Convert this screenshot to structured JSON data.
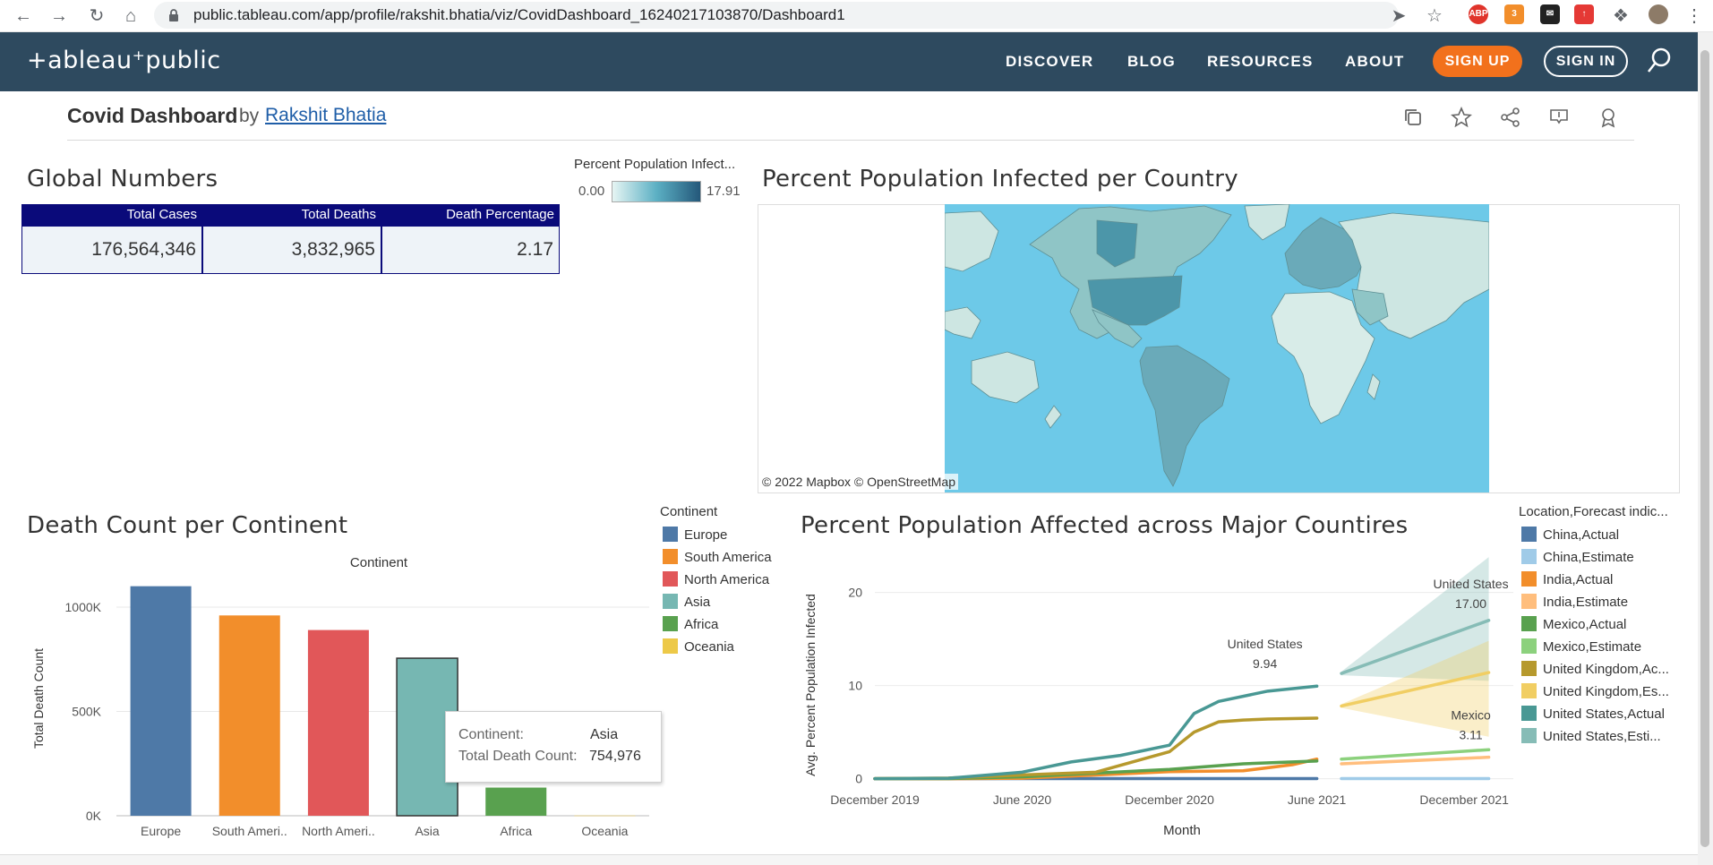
{
  "browser": {
    "url": "public.tableau.com/app/profile/rakshit.bhatia/viz/CovidDashboard_16240217103870/Dashboard1",
    "ext_abp": "ABP",
    "ext_badge": "3"
  },
  "site": {
    "logo": "+ableau⁺public",
    "nav": [
      "DISCOVER",
      "BLOG",
      "RESOURCES",
      "ABOUT"
    ],
    "signup": "SIGN UP",
    "signin": "SIGN IN"
  },
  "viz": {
    "title": "Covid Dashboard",
    "by": "by",
    "author": "Rakshit Bhatia"
  },
  "global": {
    "title": "Global Numbers",
    "headers": [
      "Total Cases",
      "Total Deaths",
      "Death Percentage"
    ],
    "values": [
      "176,564,346",
      "3,832,965",
      "2.17"
    ]
  },
  "map": {
    "title": "Percent Population Infected per Country",
    "legend_title": "Percent Population Infect...",
    "legend_min": "0.00",
    "legend_max": "17.91",
    "attribution": "© 2022 Mapbox  © OpenStreetMap",
    "colors": {
      "ocean": "#6dc9e8",
      "low": "#cde6e2",
      "mid": "#8fc5c6",
      "high": "#4c96a9"
    }
  },
  "continent": {
    "title": "Death Count per Continent",
    "legend_title": "Continent",
    "legend": [
      {
        "name": "Europe",
        "color": "#4e79a7"
      },
      {
        "name": "South America",
        "color": "#f28e2b"
      },
      {
        "name": "North America",
        "color": "#e15759"
      },
      {
        "name": "Asia",
        "color": "#76b7b2"
      },
      {
        "name": "Africa",
        "color": "#59a14f"
      },
      {
        "name": "Oceania",
        "color": "#edc948"
      }
    ],
    "tooltip": {
      "k1": "Continent:",
      "v1": "Asia",
      "k2": "Total Death Count:",
      "v2": "754,976"
    }
  },
  "trend": {
    "title": "Percent Population Affected across Major Countires",
    "legend_title": "Location,Forecast indic...",
    "legend": [
      {
        "name": "China,Actual",
        "color": "#4e79a7"
      },
      {
        "name": "China,Estimate",
        "color": "#a0cbe8"
      },
      {
        "name": "India,Actual",
        "color": "#f28e2b"
      },
      {
        "name": "India,Estimate",
        "color": "#ffbe7d"
      },
      {
        "name": "Mexico,Actual",
        "color": "#59a14f"
      },
      {
        "name": "Mexico,Estimate",
        "color": "#8cd17d"
      },
      {
        "name": "United Kingdom,Ac...",
        "color": "#b6992d"
      },
      {
        "name": "United Kingdom,Es...",
        "color": "#f1ce63"
      },
      {
        "name": "United States,Actual",
        "color": "#499894"
      },
      {
        "name": "United States,Esti...",
        "color": "#86bcb6"
      }
    ]
  },
  "chart_data": [
    {
      "type": "bar",
      "title": "",
      "header": "Continent",
      "xlabel": "",
      "ylabel": "Total Death Count",
      "categories": [
        "Europe",
        "South Ameri..",
        "North Ameri..",
        "Asia",
        "Africa",
        "Oceania"
      ],
      "values": [
        1100000,
        960000,
        890000,
        754976,
        135000,
        1000
      ],
      "colors": [
        "#4e79a7",
        "#f28e2b",
        "#e15759",
        "#76b7b2",
        "#59a14f",
        "#edc948"
      ],
      "yticks": [
        "0K",
        "500K",
        "1000K"
      ],
      "ylim": [
        0,
        1120000
      ]
    },
    {
      "type": "line",
      "title": "",
      "xlabel": "Month",
      "ylabel": "Avg. Percent Population Infected",
      "xticks": [
        "December 2019",
        "June 2020",
        "December 2020",
        "June 2021",
        "December 2021"
      ],
      "yticks": [
        "0",
        "10",
        "20"
      ],
      "ylim": [
        -1,
        24
      ],
      "x_months_range": [
        "2019-12",
        "2022-02"
      ],
      "series": [
        {
          "name": "China,Actual",
          "color": "#4e79a7",
          "x": [
            "2019-12",
            "2020-06",
            "2020-12",
            "2021-06"
          ],
          "y": [
            0.0,
            0.01,
            0.01,
            0.01
          ]
        },
        {
          "name": "China,Estimate",
          "color": "#a0cbe8",
          "x": [
            "2021-07",
            "2022-01"
          ],
          "y": [
            0.01,
            0.01
          ]
        },
        {
          "name": "India,Actual",
          "color": "#f28e2b",
          "x": [
            "2019-12",
            "2020-03",
            "2020-06",
            "2020-09",
            "2020-12",
            "2021-03",
            "2021-05",
            "2021-06"
          ],
          "y": [
            0.0,
            0.0,
            0.05,
            0.4,
            0.75,
            0.85,
            1.5,
            2.1
          ]
        },
        {
          "name": "India,Estimate",
          "color": "#ffbe7d",
          "x": [
            "2021-07",
            "2022-01"
          ],
          "y": [
            1.6,
            2.3
          ]
        },
        {
          "name": "Mexico,Actual",
          "color": "#59a14f",
          "x": [
            "2019-12",
            "2020-03",
            "2020-06",
            "2020-09",
            "2020-12",
            "2021-03",
            "2021-06"
          ],
          "y": [
            0.0,
            0.01,
            0.2,
            0.6,
            1.0,
            1.6,
            1.9
          ]
        },
        {
          "name": "Mexico,Estimate",
          "color": "#8cd17d",
          "x": [
            "2021-07",
            "2022-01"
          ],
          "y": [
            2.1,
            3.11
          ]
        },
        {
          "name": "United Kingdom,Actual",
          "color": "#b6992d",
          "x": [
            "2019-12",
            "2020-03",
            "2020-06",
            "2020-09",
            "2020-12",
            "2021-01",
            "2021-02",
            "2021-03",
            "2021-04",
            "2021-06"
          ],
          "y": [
            0.0,
            0.07,
            0.4,
            0.7,
            2.9,
            5.0,
            6.1,
            6.3,
            6.4,
            6.5
          ]
        },
        {
          "name": "United Kingdom,Estimate",
          "color": "#f1ce63",
          "x": [
            "2021-07",
            "2022-01"
          ],
          "y": [
            7.8,
            11.4
          ]
        },
        {
          "name": "United States,Actual",
          "color": "#499894",
          "x": [
            "2019-12",
            "2020-03",
            "2020-06",
            "2020-08",
            "2020-10",
            "2020-12",
            "2021-01",
            "2021-02",
            "2021-04",
            "2021-06"
          ],
          "y": [
            0.0,
            0.05,
            0.7,
            1.8,
            2.5,
            3.6,
            7.0,
            8.3,
            9.4,
            9.94
          ]
        },
        {
          "name": "United States,Estimate",
          "color": "#86bcb6",
          "x": [
            "2021-07",
            "2022-01"
          ],
          "y": [
            11.3,
            17.0
          ]
        }
      ],
      "bands": [
        {
          "name": "United States,Estimate",
          "color": "#86bcb6",
          "x": [
            "2021-07",
            "2022-01"
          ],
          "upper": [
            11.5,
            23.8
          ],
          "lower": [
            11.1,
            10.5
          ]
        },
        {
          "name": "United Kingdom,Estimate",
          "color": "#f1ce63",
          "x": [
            "2021-07",
            "2022-01"
          ],
          "upper": [
            8.0,
            14.8
          ],
          "lower": [
            7.6,
            4.5
          ]
        }
      ],
      "annotations": [
        {
          "label": "United States",
          "value": "9.94"
        },
        {
          "label": "United States",
          "value": "17.00"
        },
        {
          "label": "Mexico",
          "value": "3.11"
        }
      ]
    }
  ]
}
